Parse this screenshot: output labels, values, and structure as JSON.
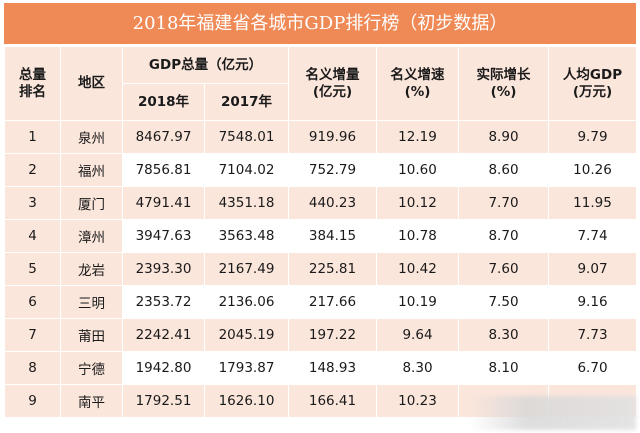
{
  "title": "2018年福建省各城市GDP排行榜（初步数据）",
  "headers": {
    "rank": "总量\n排名",
    "region": "地区",
    "gdp_total": "GDP总量（亿元）",
    "year_2018": "2018年",
    "year_2017": "2017年",
    "nominal_increase": "名义增量\n(亿元)",
    "nominal_growth": "名义增速\n(%)",
    "real_growth": "实际增长\n(%)",
    "per_capita": "人均GDP\n(万元)"
  },
  "rows": [
    {
      "rank": "1",
      "region": "泉州",
      "gdp2018": "8467.97",
      "gdp2017": "7548.01",
      "increase": "919.96",
      "nominal": "12.19",
      "real": "8.90",
      "per_capita": "9.79"
    },
    {
      "rank": "2",
      "region": "福州",
      "gdp2018": "7856.81",
      "gdp2017": "7104.02",
      "increase": "752.79",
      "nominal": "10.60",
      "real": "8.60",
      "per_capita": "10.26"
    },
    {
      "rank": "3",
      "region": "厦门",
      "gdp2018": "4791.41",
      "gdp2017": "4351.18",
      "increase": "440.23",
      "nominal": "10.12",
      "real": "7.70",
      "per_capita": "11.95"
    },
    {
      "rank": "4",
      "region": "漳州",
      "gdp2018": "3947.63",
      "gdp2017": "3563.48",
      "increase": "384.15",
      "nominal": "10.78",
      "real": "8.70",
      "per_capita": "7.74"
    },
    {
      "rank": "5",
      "region": "龙岩",
      "gdp2018": "2393.30",
      "gdp2017": "2167.49",
      "increase": "225.81",
      "nominal": "10.42",
      "real": "7.60",
      "per_capita": "9.07"
    },
    {
      "rank": "6",
      "region": "三明",
      "gdp2018": "2353.72",
      "gdp2017": "2136.06",
      "increase": "217.66",
      "nominal": "10.19",
      "real": "7.50",
      "per_capita": "9.16"
    },
    {
      "rank": "7",
      "region": "莆田",
      "gdp2018": "2242.41",
      "gdp2017": "2045.19",
      "increase": "197.22",
      "nominal": "9.64",
      "real": "8.30",
      "per_capita": "7.73"
    },
    {
      "rank": "8",
      "region": "宁德",
      "gdp2018": "1942.80",
      "gdp2017": "1793.87",
      "increase": "148.93",
      "nominal": "8.30",
      "real": "8.10",
      "per_capita": "6.70"
    },
    {
      "rank": "9",
      "region": "南平",
      "gdp2018": "1792.51",
      "gdp2017": "1626.10",
      "increase": "166.41",
      "nominal": "10.23",
      "real": "",
      "per_capita": ""
    }
  ],
  "colors": {
    "title_bg": "#ef8a56",
    "row_tint": "#fbe6dc"
  }
}
